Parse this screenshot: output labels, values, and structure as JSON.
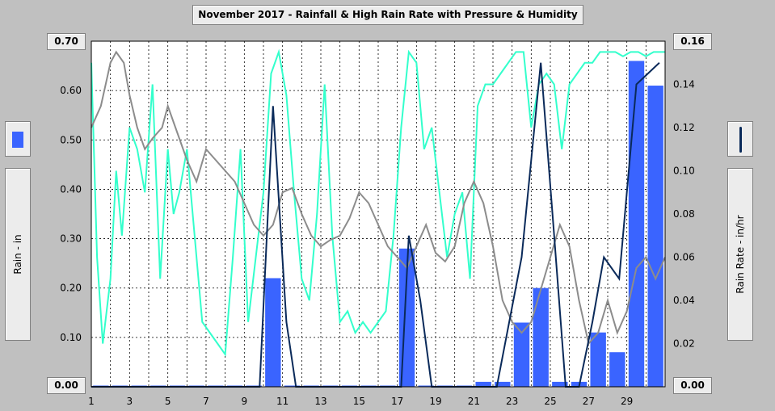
{
  "chart_data": {
    "type": "bar+line",
    "title": "November 2017 - Rainfall & High Rain Rate with Pressure & Humidity",
    "ylabel_left": "Rain - in",
    "ylabel_right": "Rain Rate - in/hr",
    "ylim_left": [
      0,
      0.7
    ],
    "ylim_right": [
      0,
      0.16
    ],
    "xlim": [
      1,
      31
    ],
    "y_ticks_left": [
      "0.70",
      "0.60",
      "0.50",
      "0.40",
      "0.30",
      "0.20",
      "0.10",
      "0.00"
    ],
    "y_ticks_right": [
      "0.16",
      "0.14",
      "0.12",
      "0.10",
      "0.08",
      "0.06",
      "0.04",
      "0.02",
      "0.00"
    ],
    "x_ticks": [
      "1",
      "3",
      "5",
      "7",
      "9",
      "11",
      "13",
      "15",
      "17",
      "19",
      "21",
      "23",
      "25",
      "27",
      "29"
    ],
    "grid": true,
    "colors": {
      "rain_bar": "#3a64ff",
      "rain_rate": "#0a2a5a",
      "humidity": "#33ffcc",
      "pressure": "#8c8c8c",
      "plot_bg": "#ffffff",
      "page_bg": "#c0c0c0"
    },
    "rain_daily": {
      "days": [
        1,
        2,
        3,
        4,
        5,
        6,
        7,
        8,
        9,
        10,
        11,
        12,
        13,
        14,
        15,
        16,
        17,
        18,
        19,
        20,
        21,
        22,
        23,
        24,
        25,
        26,
        27,
        28,
        29,
        30
      ],
      "values": [
        0.0,
        0.0,
        0.0,
        0.0,
        0.0,
        0.0,
        0.0,
        0.0,
        0.0,
        0.22,
        0.0,
        0.0,
        0.0,
        0.0,
        0.0,
        0.0,
        0.28,
        0.0,
        0.0,
        0.0,
        0.01,
        0.01,
        0.13,
        0.2,
        0.01,
        0.01,
        0.11,
        0.07,
        0.66,
        0.61
      ]
    },
    "rain_rate": {
      "x": [
        1,
        9.8,
        10.5,
        11.2,
        11.7,
        16.5,
        17.2,
        17.6,
        18.2,
        18.8,
        22.2,
        23.5,
        24.5,
        25.2,
        25.8,
        26.5,
        27.2,
        27.8,
        28.6,
        29.5,
        30.7
      ],
      "y": [
        0,
        0,
        0.13,
        0.03,
        0,
        0,
        0,
        0.07,
        0.04,
        0,
        0,
        0.06,
        0.15,
        0.07,
        0,
        0,
        0.03,
        0.06,
        0.05,
        0.14,
        0.15
      ]
    },
    "pressure_trace": {
      "x": [
        1,
        1.5,
        2,
        2.3,
        2.7,
        3,
        3.4,
        3.8,
        4.2,
        4.7,
        5,
        5.4,
        6,
        6.5,
        7,
        7.5,
        8,
        8.5,
        9,
        9.5,
        10,
        10.5,
        11,
        11.5,
        12,
        12.5,
        13,
        13.5,
        14,
        14.5,
        15,
        15.5,
        16,
        16.5,
        17,
        17.5,
        18,
        18.5,
        19,
        19.5,
        20,
        20.5,
        21,
        21.5,
        22,
        22.5,
        23,
        23.5,
        24,
        24.5,
        25,
        25.5,
        26,
        26.5,
        27,
        27.5,
        28,
        28.5,
        29,
        29.5,
        30,
        30.5,
        31
      ],
      "y": [
        0.12,
        0.13,
        0.15,
        0.155,
        0.15,
        0.135,
        0.12,
        0.11,
        0.115,
        0.12,
        0.13,
        0.12,
        0.105,
        0.095,
        0.11,
        0.105,
        0.1,
        0.095,
        0.085,
        0.075,
        0.07,
        0.075,
        0.09,
        0.092,
        0.08,
        0.07,
        0.065,
        0.068,
        0.07,
        0.078,
        0.09,
        0.085,
        0.075,
        0.065,
        0.06,
        0.055,
        0.065,
        0.075,
        0.062,
        0.058,
        0.065,
        0.085,
        0.095,
        0.085,
        0.065,
        0.04,
        0.03,
        0.025,
        0.03,
        0.045,
        0.06,
        0.075,
        0.065,
        0.04,
        0.02,
        0.025,
        0.04,
        0.025,
        0.035,
        0.055,
        0.06,
        0.05,
        0.06
      ]
    },
    "humidity_trace": {
      "x": [
        1,
        1.3,
        1.6,
        2,
        2.3,
        2.6,
        3,
        3.4,
        3.8,
        4.2,
        4.6,
        5,
        5.3,
        5.6,
        6,
        6.4,
        6.8,
        7.2,
        7.6,
        8,
        8.4,
        8.8,
        9.2,
        9.6,
        10,
        10.4,
        10.8,
        11.2,
        11.6,
        12,
        12.4,
        12.8,
        13.2,
        13.6,
        14,
        14.4,
        14.8,
        15.2,
        15.6,
        16,
        16.4,
        16.8,
        17.2,
        17.6,
        18,
        18.4,
        18.8,
        19.2,
        19.6,
        20,
        20.4,
        20.8,
        21.2,
        21.6,
        22,
        22.4,
        22.8,
        23.2,
        23.6,
        24,
        24.4,
        24.8,
        25.2,
        25.6,
        26,
        26.4,
        26.8,
        27.2,
        27.6,
        28,
        28.4,
        28.8,
        29.2,
        29.6,
        30,
        30.4,
        30.8,
        31
      ],
      "y": [
        0.15,
        0.06,
        0.02,
        0.05,
        0.1,
        0.07,
        0.12,
        0.11,
        0.09,
        0.14,
        0.05,
        0.11,
        0.08,
        0.09,
        0.11,
        0.07,
        0.03,
        0.025,
        0.02,
        0.015,
        0.06,
        0.11,
        0.03,
        0.06,
        0.09,
        0.145,
        0.155,
        0.135,
        0.09,
        0.05,
        0.04,
        0.08,
        0.14,
        0.07,
        0.03,
        0.035,
        0.025,
        0.03,
        0.025,
        0.03,
        0.035,
        0.07,
        0.12,
        0.155,
        0.15,
        0.11,
        0.12,
        0.09,
        0.06,
        0.08,
        0.09,
        0.05,
        0.13,
        0.14,
        0.14,
        0.145,
        0.15,
        0.155,
        0.155,
        0.12,
        0.14,
        0.145,
        0.14,
        0.11,
        0.14,
        0.145,
        0.15,
        0.15,
        0.155,
        0.155,
        0.155,
        0.153,
        0.155,
        0.155,
        0.153,
        0.155,
        0.155,
        0.155
      ]
    }
  }
}
